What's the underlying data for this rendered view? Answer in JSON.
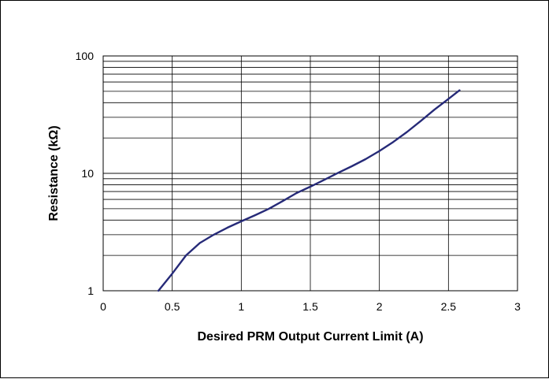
{
  "chart_data": {
    "type": "line",
    "title": "",
    "xlabel": "Desired PRM Output Current Limit (A)",
    "ylabel": "Resistance (kΩ)",
    "xlim": [
      0,
      3
    ],
    "ylim": [
      1,
      100
    ],
    "yscale": "log",
    "grid": true,
    "x_ticks": [
      "0",
      "0.5",
      "1",
      "1.5",
      "2",
      "2.5",
      "3"
    ],
    "y_ticks": [
      "1",
      "10",
      "100"
    ],
    "series": [
      {
        "color": "#262a78",
        "points": [
          [
            0.4,
            1.0
          ],
          [
            0.5,
            1.4
          ],
          [
            0.6,
            2.0
          ],
          [
            0.7,
            2.55
          ],
          [
            0.8,
            3.0
          ],
          [
            0.9,
            3.45
          ],
          [
            1.0,
            3.9
          ],
          [
            1.1,
            4.4
          ],
          [
            1.2,
            5.0
          ],
          [
            1.3,
            5.8
          ],
          [
            1.4,
            6.8
          ],
          [
            1.5,
            7.7
          ],
          [
            1.6,
            8.8
          ],
          [
            1.7,
            10.1
          ],
          [
            1.8,
            11.5
          ],
          [
            1.9,
            13.2
          ],
          [
            2.0,
            15.5
          ],
          [
            2.1,
            18.5
          ],
          [
            2.2,
            22.5
          ],
          [
            2.3,
            28.0
          ],
          [
            2.4,
            35.0
          ],
          [
            2.5,
            43.0
          ],
          [
            2.58,
            51.0
          ]
        ]
      }
    ]
  }
}
